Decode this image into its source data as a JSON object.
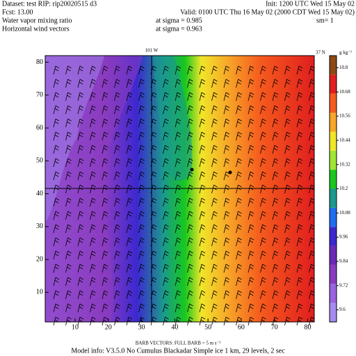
{
  "header": {
    "dataset": "Dataset: test  RIP: rip20020515 d3",
    "init": "Init: 1200 UTC Wed 15 May 02",
    "fcst": "Fcst:    13.00",
    "valid": "Valid: 0100 UTC Thu 16 May 02 (2000 CDT Wed 15 May 02)",
    "field1": "Water vapor mixing ratio",
    "level1": "at sigma = 0.985",
    "smooth": "sm= 1",
    "field2": "Horizontal wind vectors",
    "level2": "at sigma = 0.963"
  },
  "map": {
    "lon_label": "101 W",
    "lat_label": "37 N",
    "xlim": [
      1,
      82
    ],
    "ylim": [
      1,
      82
    ],
    "xticks": [
      10,
      20,
      30,
      40,
      50,
      60,
      70,
      80
    ],
    "yticks": [
      10,
      20,
      30,
      40,
      50,
      60,
      70,
      80
    ]
  },
  "colorbar": {
    "unit": "g kg⁻¹",
    "lim": [
      9.54,
      10.86
    ],
    "ticks": [
      9.6,
      9.72,
      9.84,
      9.96,
      10.08,
      10.2,
      10.32,
      10.44,
      10.56,
      10.68,
      10.8
    ],
    "colors": [
      "#a58cf0",
      "#9a63e0",
      "#8a3cc0",
      "#6a2ab8",
      "#3c28d0",
      "#1e6ef0",
      "#1a9a8c",
      "#18c81e",
      "#9ee632",
      "#f0e628",
      "#f7a628",
      "#f55a1e",
      "#e01e1e",
      "#8c4a14"
    ]
  },
  "footer": {
    "barb": "BARB VECTORS:  FULL BARB = 5 m s⁻¹",
    "model": "Model info: V3.5.0  No Cumulus  Blackadar  Simple ice    1 km,  29 levels,    2 sec"
  }
}
